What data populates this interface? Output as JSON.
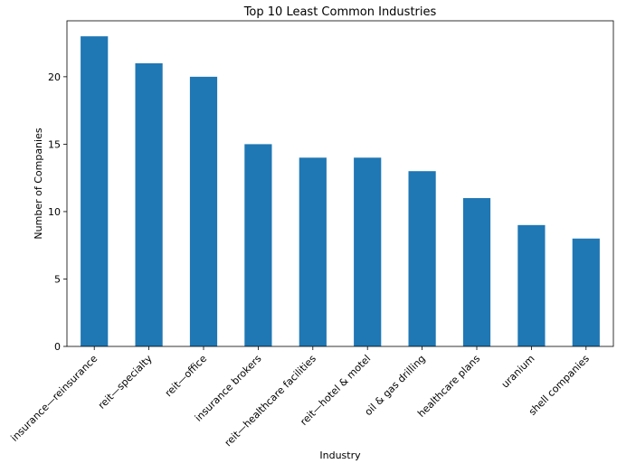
{
  "chart_data": {
    "type": "bar",
    "title": "Top 10 Least Common Industries",
    "xlabel": "Industry",
    "ylabel": "Number of Companies",
    "categories": [
      "insurance—reinsurance",
      "reit—specialty",
      "reit—office",
      "insurance brokers",
      "reit—healthcare facilities",
      "reit—hotel & motel",
      "oil & gas drilling",
      "healthcare plans",
      "uranium",
      "shell companies"
    ],
    "values": [
      23,
      21,
      20,
      15,
      14,
      14,
      13,
      11,
      9,
      8
    ],
    "ylim": [
      0,
      24.15
    ],
    "yticks": [
      0,
      5,
      10,
      15,
      20
    ],
    "bar_color": "#1f77b4",
    "grid": false,
    "legend": "none"
  }
}
